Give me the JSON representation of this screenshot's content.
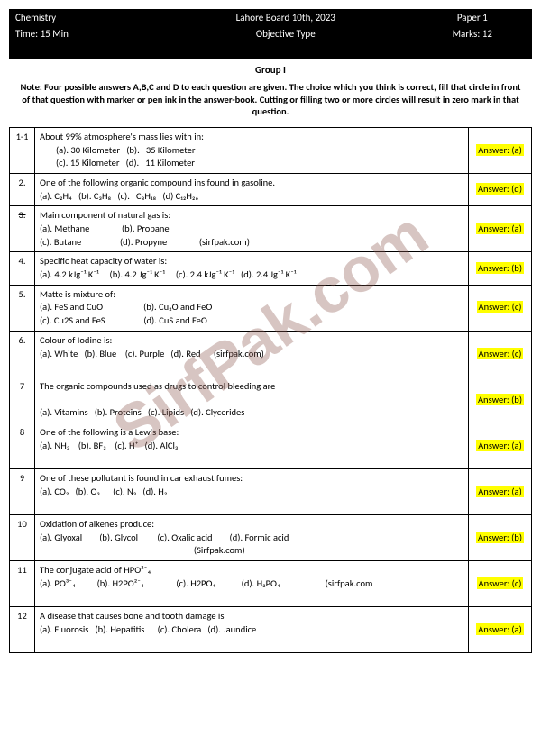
{
  "header": {
    "r1c1": "Chemistry",
    "r1c2": "Lahore Board 10th, 2023",
    "r1c3": "Paper 1",
    "r2c1": "Time:  15 Min",
    "r2c2": "Objective Type",
    "r2c3": "Marks: 12"
  },
  "group": "Group I",
  "note": "Note: Four possible answers A,B,C and D to each question are given. The choice which you think is correct, fill that circle in front of that question with marker or pen ink in the answer-book. Cutting or filling two or more circles will result in zero mark in that question.",
  "watermark": "SirfPak.com",
  "questions": [
    {
      "num": "1-1",
      "q": "About 99% atmosphere's mass lies with in:",
      "opts": "<span class='indent'>(a). 30 Kilometer   (b).   35 Kilometer</span><br><span class='indent'>(c). 15 Kilometer   (d).   11 Kilometer</span>",
      "ans": "Answer: (a)"
    },
    {
      "num": "2.",
      "q": "One of the following organic compound ins found in gasoline.",
      "opts": "(a). C₂H₄   (b). C₃H₈   (c).   C₈H₁₈   (d) C₁₂H₂₆",
      "ans": "Answer: (d)"
    },
    {
      "num": "3.",
      "strike": true,
      "q": "Main component of natural gas is:",
      "opts": "(a). Methane               (b). Propane<br>(c). Butane                  (d). Propyne               (sirfpak.com)",
      "ans": "Answer:  (a)"
    },
    {
      "num": "4.",
      "q": "Specific heat capacity of water is:",
      "opts": "(a). 4.2 kJg⁻¹ K⁻¹     (b). 4.2 Jg⁻¹ K⁻¹     (c). 2.4 kJg⁻¹ K⁻¹   (d). 2.4 Jg⁻¹ K⁻¹",
      "ans": "Answer: (b)"
    },
    {
      "num": "5.",
      "q": "Matte is mixture of:",
      "opts": "(a). FeS and CuO                   (b). Cu₂O and FeO<br>(c). Cu2S and FeS                  (d). CuS and FeO",
      "ans": "Answer: (c)"
    },
    {
      "num": "6.",
      "q": "Colour of Iodine is:",
      "opts": "(a). White   (b). Blue    (c). Purple   (d). Red      (sirfpak.com)<br><br>",
      "ans": "Answer: (c)"
    },
    {
      "num": "7",
      "q": "The organic compounds used as drugs to control bleeding are",
      "opts": "<br>(a). Vitamins   (b). Proteins   (c). Lipids   (d). Clycerides<br>",
      "ans": "Answer: (b)"
    },
    {
      "num": "8",
      "q": "One of the following is a Lew's base:",
      "opts": "(a). NH₃    (b). BF₃    (c). H⁺   (d). AlCl₃<br><br>",
      "ans": "Answer: (a)"
    },
    {
      "num": "9",
      "q": "One of these pollutant is found in car exhaust fumes:",
      "opts": "(a). CO₂   (b). O₃      (c). N₃   (d). H₂<br><br>",
      "ans": "Answer: (a)"
    },
    {
      "num": "10",
      "q": "Oxidation of alkenes produce:",
      "opts": "(a). Glyoxal        (b). Glycol         (c). Oxalic acid        (d). Formic acid<br>                                                                        (Sirfpak.com)",
      "ans": "Answer: (b)"
    },
    {
      "num": "11",
      "q": "The conjugate acid of HPO²⁻₄",
      "opts": "(a). PO³⁻₄          (b). H2PO²⁻₄               (c). H2PO₄            (d). H₃PO₄                     (sirfpak.com<br><br>",
      "ans": "Answer: (c)"
    },
    {
      "num": "12",
      "q": "A disease that causes bone and tooth damage is",
      "opts": "(a). Fluorosis   (b). Hepatitis      (c). Cholera   (d). Jaundice<br><br>",
      "ans": "Answer: (a)"
    }
  ]
}
